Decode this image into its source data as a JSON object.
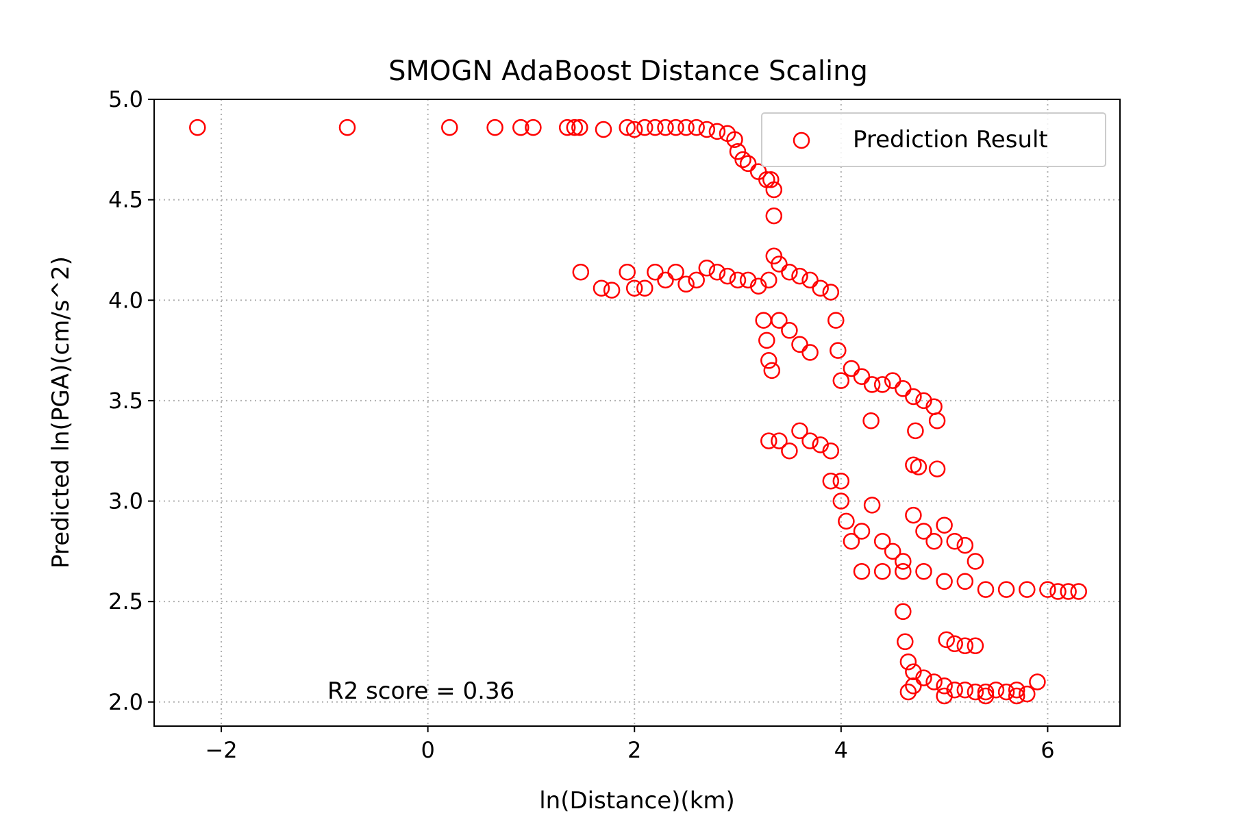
{
  "chart_data": {
    "type": "scatter",
    "title": "SMOGN AdaBoost Distance Scaling",
    "xlabel": "ln(Distance)(km)",
    "ylabel": "Predicted ln(PGA)(cm/s^2)",
    "xlim": [
      -2.65,
      6.7
    ],
    "ylim": [
      1.88,
      5.0
    ],
    "xticks": [
      -2,
      0,
      2,
      4,
      6
    ],
    "xtick_labels": [
      "−2",
      "0",
      "2",
      "4",
      "6"
    ],
    "yticks": [
      2.0,
      2.5,
      3.0,
      3.5,
      4.0,
      4.5,
      5.0
    ],
    "ytick_labels": [
      "2.0",
      "2.5",
      "3.0",
      "3.5",
      "4.0",
      "4.5",
      "5.0"
    ],
    "grid": true,
    "legend_position": "top-right",
    "annotation": "R2 score = 0.36",
    "series": [
      {
        "name": "Prediction Result",
        "color": "#ff0000",
        "marker": "hollow-circle",
        "points": [
          [
            -2.23,
            4.86
          ],
          [
            -0.78,
            4.86
          ],
          [
            0.21,
            4.86
          ],
          [
            0.65,
            4.86
          ],
          [
            0.9,
            4.86
          ],
          [
            1.02,
            4.86
          ],
          [
            1.35,
            4.86
          ],
          [
            1.42,
            4.86
          ],
          [
            1.47,
            4.86
          ],
          [
            1.7,
            4.85
          ],
          [
            1.93,
            4.86
          ],
          [
            2.0,
            4.85
          ],
          [
            2.1,
            4.86
          ],
          [
            2.2,
            4.86
          ],
          [
            2.3,
            4.86
          ],
          [
            2.4,
            4.86
          ],
          [
            2.5,
            4.86
          ],
          [
            2.6,
            4.86
          ],
          [
            2.7,
            4.85
          ],
          [
            2.8,
            4.84
          ],
          [
            2.9,
            4.83
          ],
          [
            2.97,
            4.8
          ],
          [
            3.0,
            4.74
          ],
          [
            3.05,
            4.7
          ],
          [
            3.1,
            4.68
          ],
          [
            3.2,
            4.64
          ],
          [
            3.28,
            4.6
          ],
          [
            3.32,
            4.6
          ],
          [
            3.35,
            4.55
          ],
          [
            3.35,
            4.42
          ],
          [
            1.48,
            4.14
          ],
          [
            1.68,
            4.06
          ],
          [
            1.78,
            4.05
          ],
          [
            1.93,
            4.14
          ],
          [
            2.0,
            4.06
          ],
          [
            2.1,
            4.06
          ],
          [
            2.2,
            4.14
          ],
          [
            2.3,
            4.1
          ],
          [
            2.4,
            4.14
          ],
          [
            2.5,
            4.08
          ],
          [
            2.6,
            4.1
          ],
          [
            2.7,
            4.16
          ],
          [
            2.8,
            4.14
          ],
          [
            2.9,
            4.12
          ],
          [
            3.0,
            4.1
          ],
          [
            3.1,
            4.1
          ],
          [
            3.2,
            4.07
          ],
          [
            3.3,
            4.1
          ],
          [
            3.35,
            4.22
          ],
          [
            3.4,
            4.18
          ],
          [
            3.5,
            4.14
          ],
          [
            3.6,
            4.12
          ],
          [
            3.7,
            4.1
          ],
          [
            3.8,
            4.06
          ],
          [
            3.9,
            4.04
          ],
          [
            3.95,
            3.9
          ],
          [
            3.97,
            3.75
          ],
          [
            4.0,
            3.6
          ],
          [
            4.1,
            3.66
          ],
          [
            4.2,
            3.62
          ],
          [
            4.3,
            3.58
          ],
          [
            4.4,
            3.58
          ],
          [
            4.5,
            3.6
          ],
          [
            4.6,
            3.56
          ],
          [
            4.7,
            3.52
          ],
          [
            4.8,
            3.5
          ],
          [
            4.9,
            3.47
          ],
          [
            4.93,
            3.4
          ],
          [
            4.72,
            3.35
          ],
          [
            4.29,
            3.4
          ],
          [
            4.7,
            3.18
          ],
          [
            4.75,
            3.17
          ],
          [
            4.93,
            3.16
          ],
          [
            3.25,
            3.9
          ],
          [
            3.28,
            3.8
          ],
          [
            3.3,
            3.7
          ],
          [
            3.33,
            3.65
          ],
          [
            3.4,
            3.9
          ],
          [
            3.5,
            3.85
          ],
          [
            3.6,
            3.78
          ],
          [
            3.7,
            3.74
          ],
          [
            3.3,
            3.3
          ],
          [
            3.4,
            3.3
          ],
          [
            3.5,
            3.25
          ],
          [
            3.6,
            3.35
          ],
          [
            3.7,
            3.3
          ],
          [
            3.8,
            3.28
          ],
          [
            3.9,
            3.25
          ],
          [
            3.9,
            3.1
          ],
          [
            4.0,
            3.1
          ],
          [
            4.0,
            3.0
          ],
          [
            4.05,
            2.9
          ],
          [
            4.1,
            2.8
          ],
          [
            4.2,
            2.85
          ],
          [
            4.3,
            2.98
          ],
          [
            4.4,
            2.8
          ],
          [
            4.5,
            2.75
          ],
          [
            4.6,
            2.7
          ],
          [
            4.7,
            2.93
          ],
          [
            4.8,
            2.85
          ],
          [
            4.9,
            2.8
          ],
          [
            5.0,
            2.88
          ],
          [
            5.1,
            2.8
          ],
          [
            5.2,
            2.78
          ],
          [
            5.3,
            2.7
          ],
          [
            4.2,
            2.65
          ],
          [
            4.4,
            2.65
          ],
          [
            4.6,
            2.65
          ],
          [
            4.8,
            2.65
          ],
          [
            5.0,
            2.6
          ],
          [
            5.2,
            2.6
          ],
          [
            5.4,
            2.56
          ],
          [
            5.6,
            2.56
          ],
          [
            5.8,
            2.56
          ],
          [
            6.0,
            2.56
          ],
          [
            6.1,
            2.55
          ],
          [
            6.2,
            2.55
          ],
          [
            6.3,
            2.55
          ],
          [
            4.6,
            2.45
          ],
          [
            4.62,
            2.3
          ],
          [
            4.65,
            2.2
          ],
          [
            4.7,
            2.15
          ],
          [
            4.8,
            2.12
          ],
          [
            4.9,
            2.1
          ],
          [
            5.0,
            2.08
          ],
          [
            5.1,
            2.06
          ],
          [
            5.2,
            2.06
          ],
          [
            5.3,
            2.05
          ],
          [
            5.4,
            2.05
          ],
          [
            5.5,
            2.06
          ],
          [
            5.6,
            2.05
          ],
          [
            5.7,
            2.06
          ],
          [
            5.8,
            2.04
          ],
          [
            5.9,
            2.1
          ],
          [
            5.02,
            2.31
          ],
          [
            5.1,
            2.29
          ],
          [
            5.2,
            2.28
          ],
          [
            5.3,
            2.28
          ],
          [
            4.7,
            2.08
          ],
          [
            4.65,
            2.05
          ],
          [
            5.0,
            2.03
          ],
          [
            5.4,
            2.03
          ],
          [
            5.7,
            2.03
          ]
        ]
      }
    ]
  }
}
